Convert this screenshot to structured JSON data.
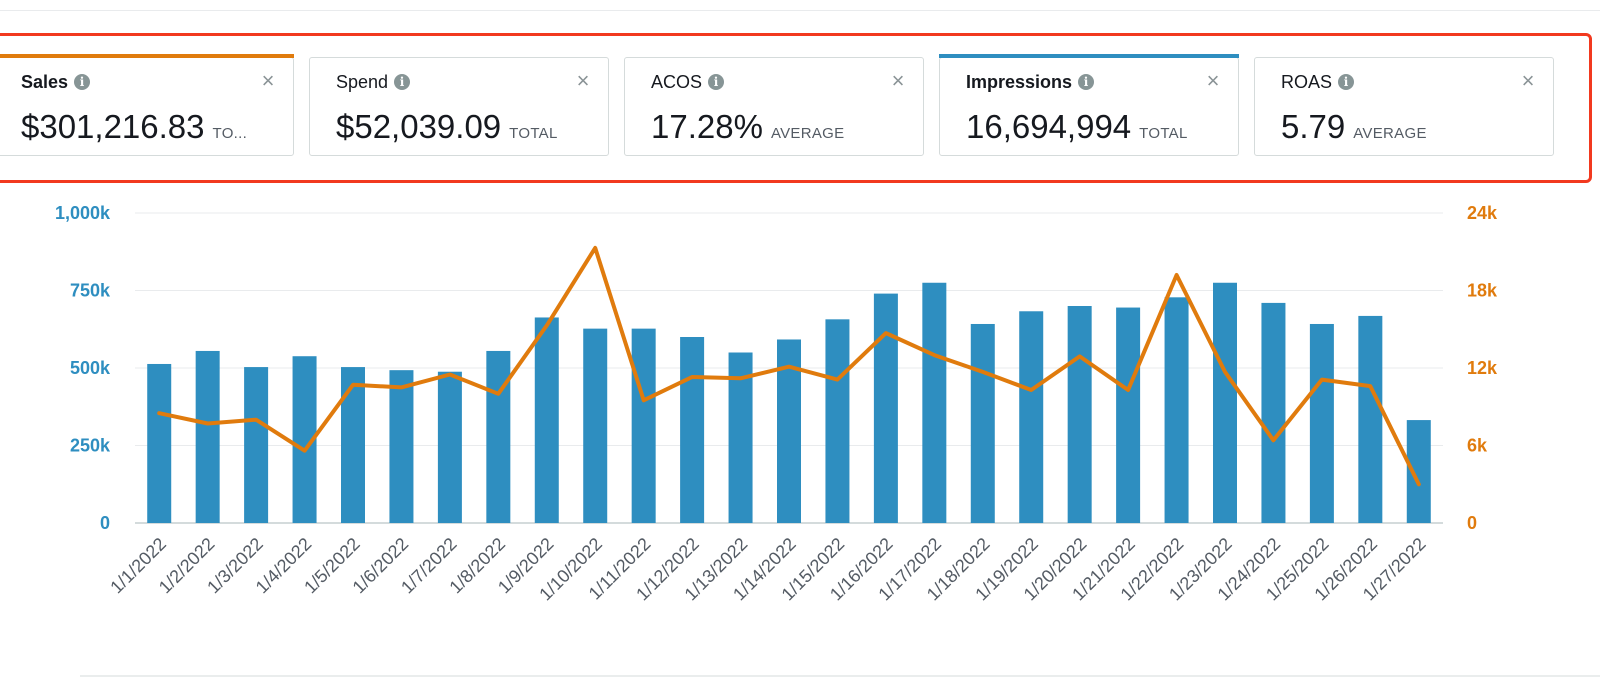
{
  "metrics": [
    {
      "name": "Sales",
      "value": "$301,216.83",
      "unit": "TO...",
      "selected": true,
      "accent": "#e07b0d"
    },
    {
      "name": "Spend",
      "value": "$52,039.09",
      "unit": "TOTAL",
      "selected": false,
      "accent": null
    },
    {
      "name": "ACOS",
      "value": "17.28%",
      "unit": "AVERAGE",
      "selected": false,
      "accent": null
    },
    {
      "name": "Impressions",
      "value": "16,694,994",
      "unit": "TOTAL",
      "selected": true,
      "accent": "#2e8ec0"
    },
    {
      "name": "ROAS",
      "value": "5.79",
      "unit": "AVERAGE",
      "selected": false,
      "accent": null
    }
  ],
  "icons": {
    "info": "info-icon",
    "close": "close-icon"
  },
  "colors": {
    "highlight": "#f2391f",
    "impressions": "#2e8ec0",
    "sales": "#e07b0d"
  },
  "chart_data": {
    "type": "bar+line",
    "categories": [
      "1/1/2022",
      "1/2/2022",
      "1/3/2022",
      "1/4/2022",
      "1/5/2022",
      "1/6/2022",
      "1/7/2022",
      "1/8/2022",
      "1/9/2022",
      "1/10/2022",
      "1/11/2022",
      "1/12/2022",
      "1/13/2022",
      "1/14/2022",
      "1/15/2022",
      "1/16/2022",
      "1/17/2022",
      "1/18/2022",
      "1/19/2022",
      "1/20/2022",
      "1/21/2022",
      "1/22/2022",
      "1/23/2022",
      "1/24/2022",
      "1/25/2022",
      "1/26/2022",
      "1/27/2022"
    ],
    "series": [
      {
        "type": "bar",
        "axis": "left",
        "values": [
          513000,
          555000,
          503000,
          538000,
          503000,
          493000,
          488000,
          555000,
          663000,
          627000,
          627000,
          600000,
          550000,
          592000,
          657000,
          740000,
          775000,
          642000,
          683000,
          700000,
          695000,
          728000,
          775000,
          710000,
          642000,
          668000,
          332000
        ]
      },
      {
        "type": "line",
        "axis": "right",
        "values": [
          8500,
          7700,
          8000,
          5600,
          10700,
          10500,
          11500,
          10000,
          15300,
          21300,
          9500,
          11300,
          11200,
          12100,
          11100,
          14700,
          13000,
          11700,
          10300,
          12900,
          10300,
          19200,
          11700,
          6400,
          11100,
          10600,
          3000
        ]
      }
    ],
    "y_left": {
      "ticks": [
        "0",
        "250k",
        "500k",
        "750k",
        "1,000k"
      ],
      "range": [
        0,
        1000000
      ]
    },
    "y_right": {
      "ticks": [
        "0",
        "6k",
        "12k",
        "18k",
        "24k"
      ],
      "range": [
        0,
        24000
      ]
    },
    "grid": true,
    "legend": false
  }
}
